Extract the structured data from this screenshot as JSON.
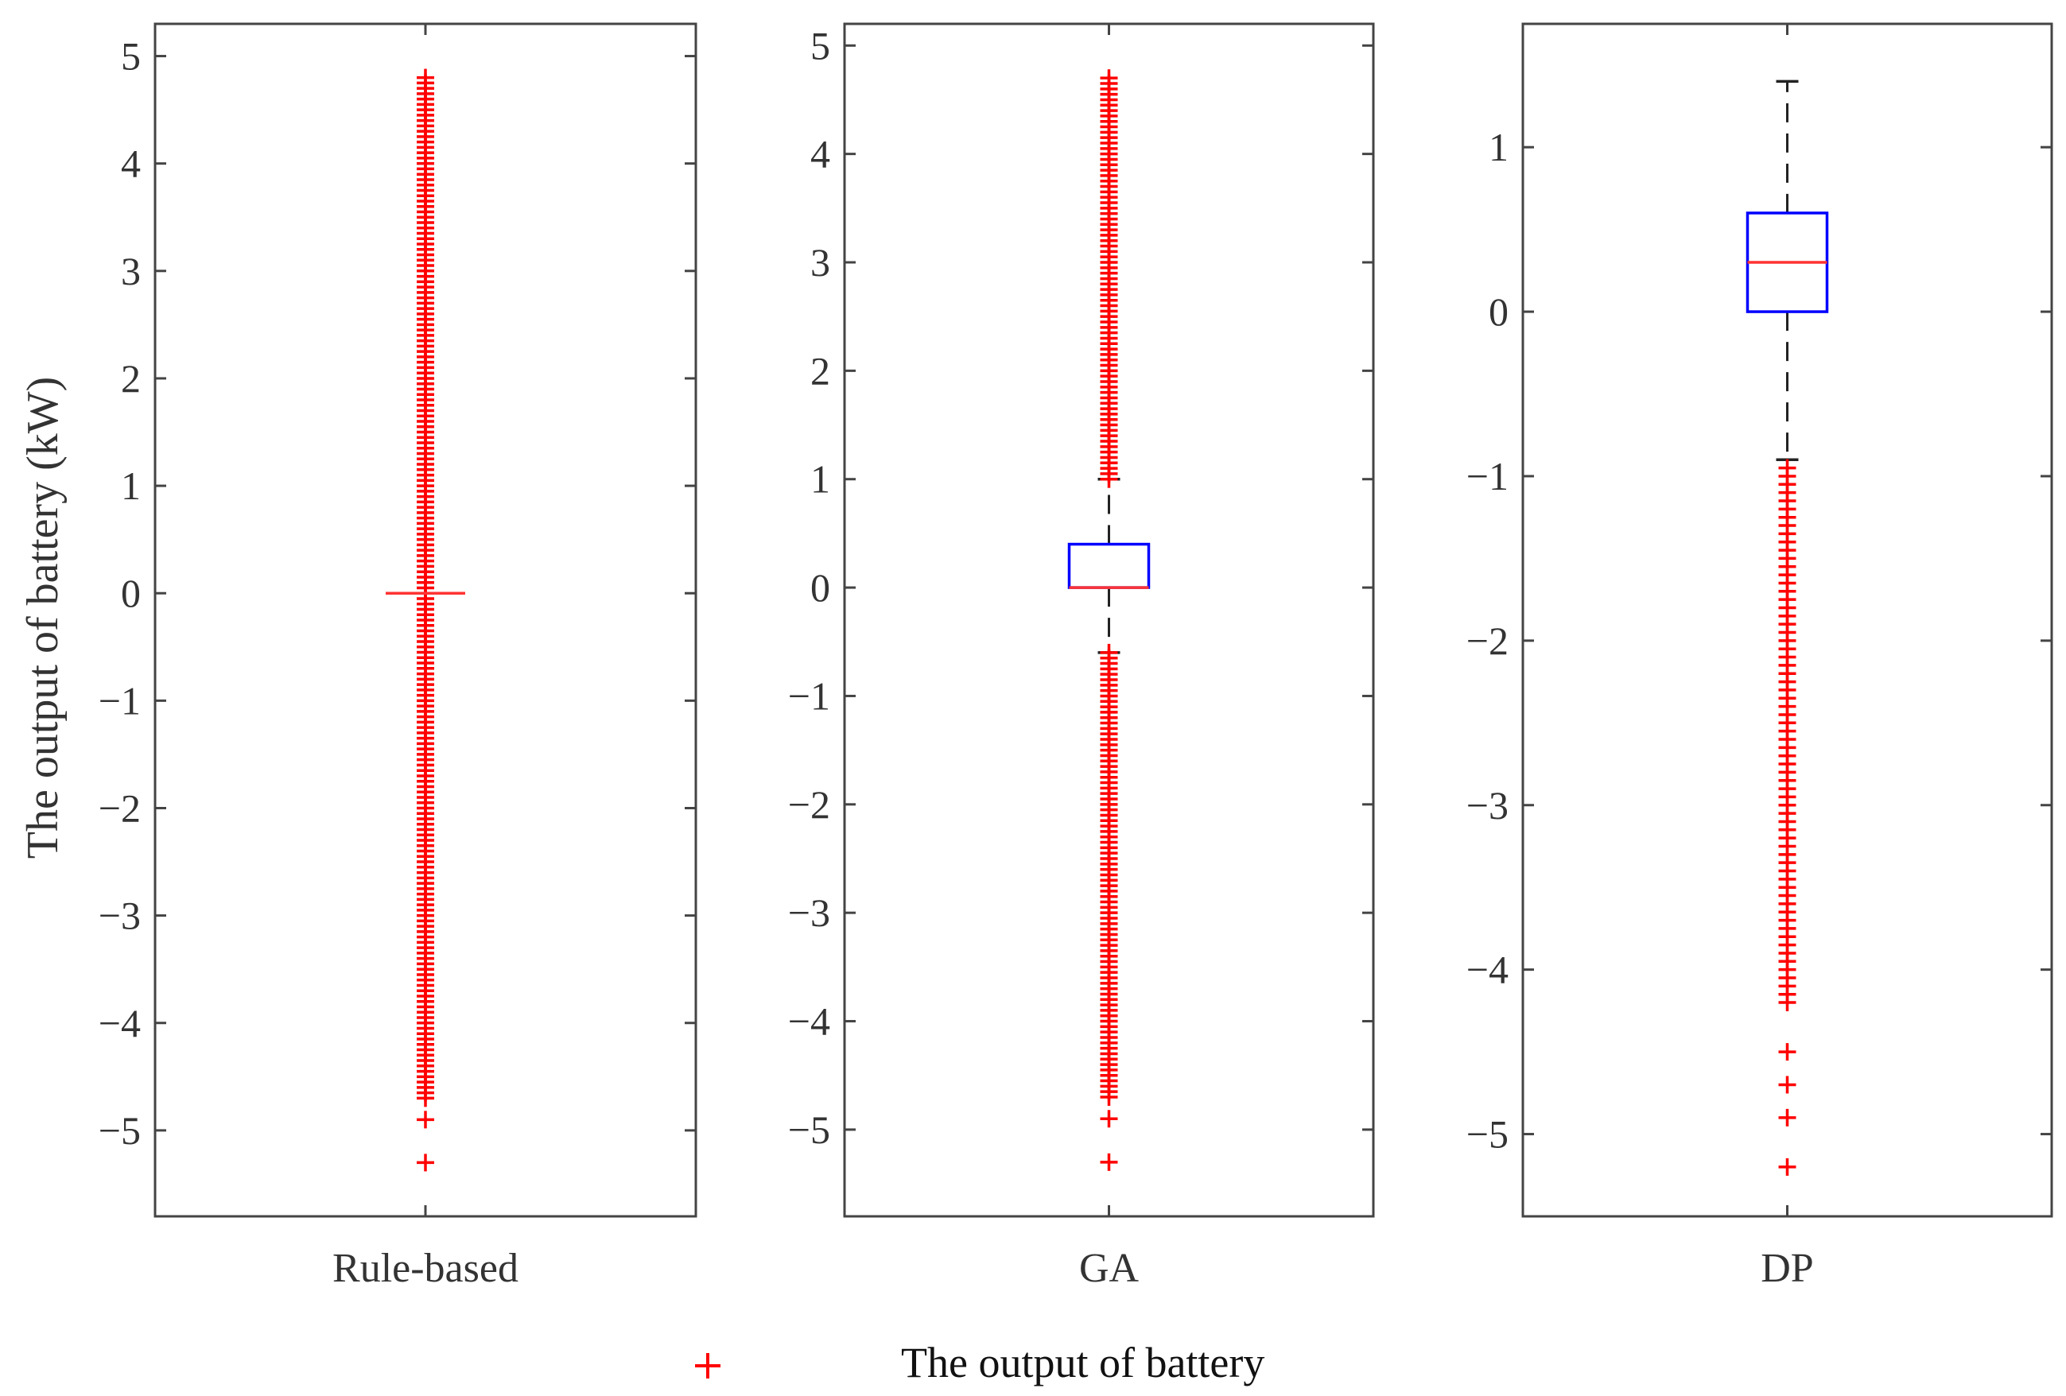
{
  "chart_data": {
    "type": "box",
    "ylabel": "The output of battery (kW)",
    "legend": {
      "marker": "+",
      "label": "The output of battery",
      "position": "bottom-center"
    },
    "colors": {
      "outlier": "#ff0000",
      "box": "#0000ff",
      "median": "#ff3333",
      "whisker": "#222222",
      "axis": "#444444"
    },
    "grid": false,
    "panels": [
      {
        "category": "Rule-based",
        "ylim": [
          -5.8,
          5.3
        ],
        "yticks": [
          -5,
          -4,
          -3,
          -2,
          -1,
          0,
          1,
          2,
          3,
          4,
          5
        ],
        "tick_labels": [
          "−5",
          "−4",
          "−3",
          "−2",
          "−1",
          "0",
          "1",
          "2",
          "3",
          "4",
          "5"
        ],
        "q1": 0,
        "median": 0,
        "q3": 0,
        "whisker_low": 0,
        "whisker_high": 0,
        "outlier_ranges": [
          [
            -4.7,
            4.8
          ]
        ],
        "outlier_step": 0.05,
        "outliers_extra": [
          -4.9,
          -5.3
        ]
      },
      {
        "category": "GA",
        "ylim": [
          -5.8,
          5.2
        ],
        "yticks": [
          -5,
          -4,
          -3,
          -2,
          -1,
          0,
          1,
          2,
          3,
          4,
          5
        ],
        "tick_labels": [
          "−5",
          "−4",
          "−3",
          "−2",
          "−1",
          "0",
          "1",
          "2",
          "3",
          "4",
          "5"
        ],
        "q1": 0,
        "median": 0,
        "q3": 0.4,
        "whisker_low": -0.6,
        "whisker_high": 1.0,
        "outlier_ranges": [
          [
            1.0,
            4.7
          ],
          [
            -4.7,
            -0.6
          ]
        ],
        "outlier_step": 0.05,
        "outliers_extra": [
          -4.9,
          -5.3
        ]
      },
      {
        "category": "DP",
        "ylim": [
          -5.5,
          1.75
        ],
        "yticks": [
          -5,
          -4,
          -3,
          -2,
          -1,
          0,
          1
        ],
        "tick_labels": [
          "−5",
          "−4",
          "−3",
          "−2",
          "−1",
          "0",
          "1"
        ],
        "q1": 0,
        "median": 0.3,
        "q3": 0.6,
        "whisker_low": -0.9,
        "whisker_high": 1.4,
        "outlier_ranges": [
          [
            -4.2,
            -0.95
          ]
        ],
        "outlier_step": 0.05,
        "outliers_extra": [
          -4.5,
          -4.7,
          -4.9,
          -5.2
        ]
      }
    ]
  }
}
